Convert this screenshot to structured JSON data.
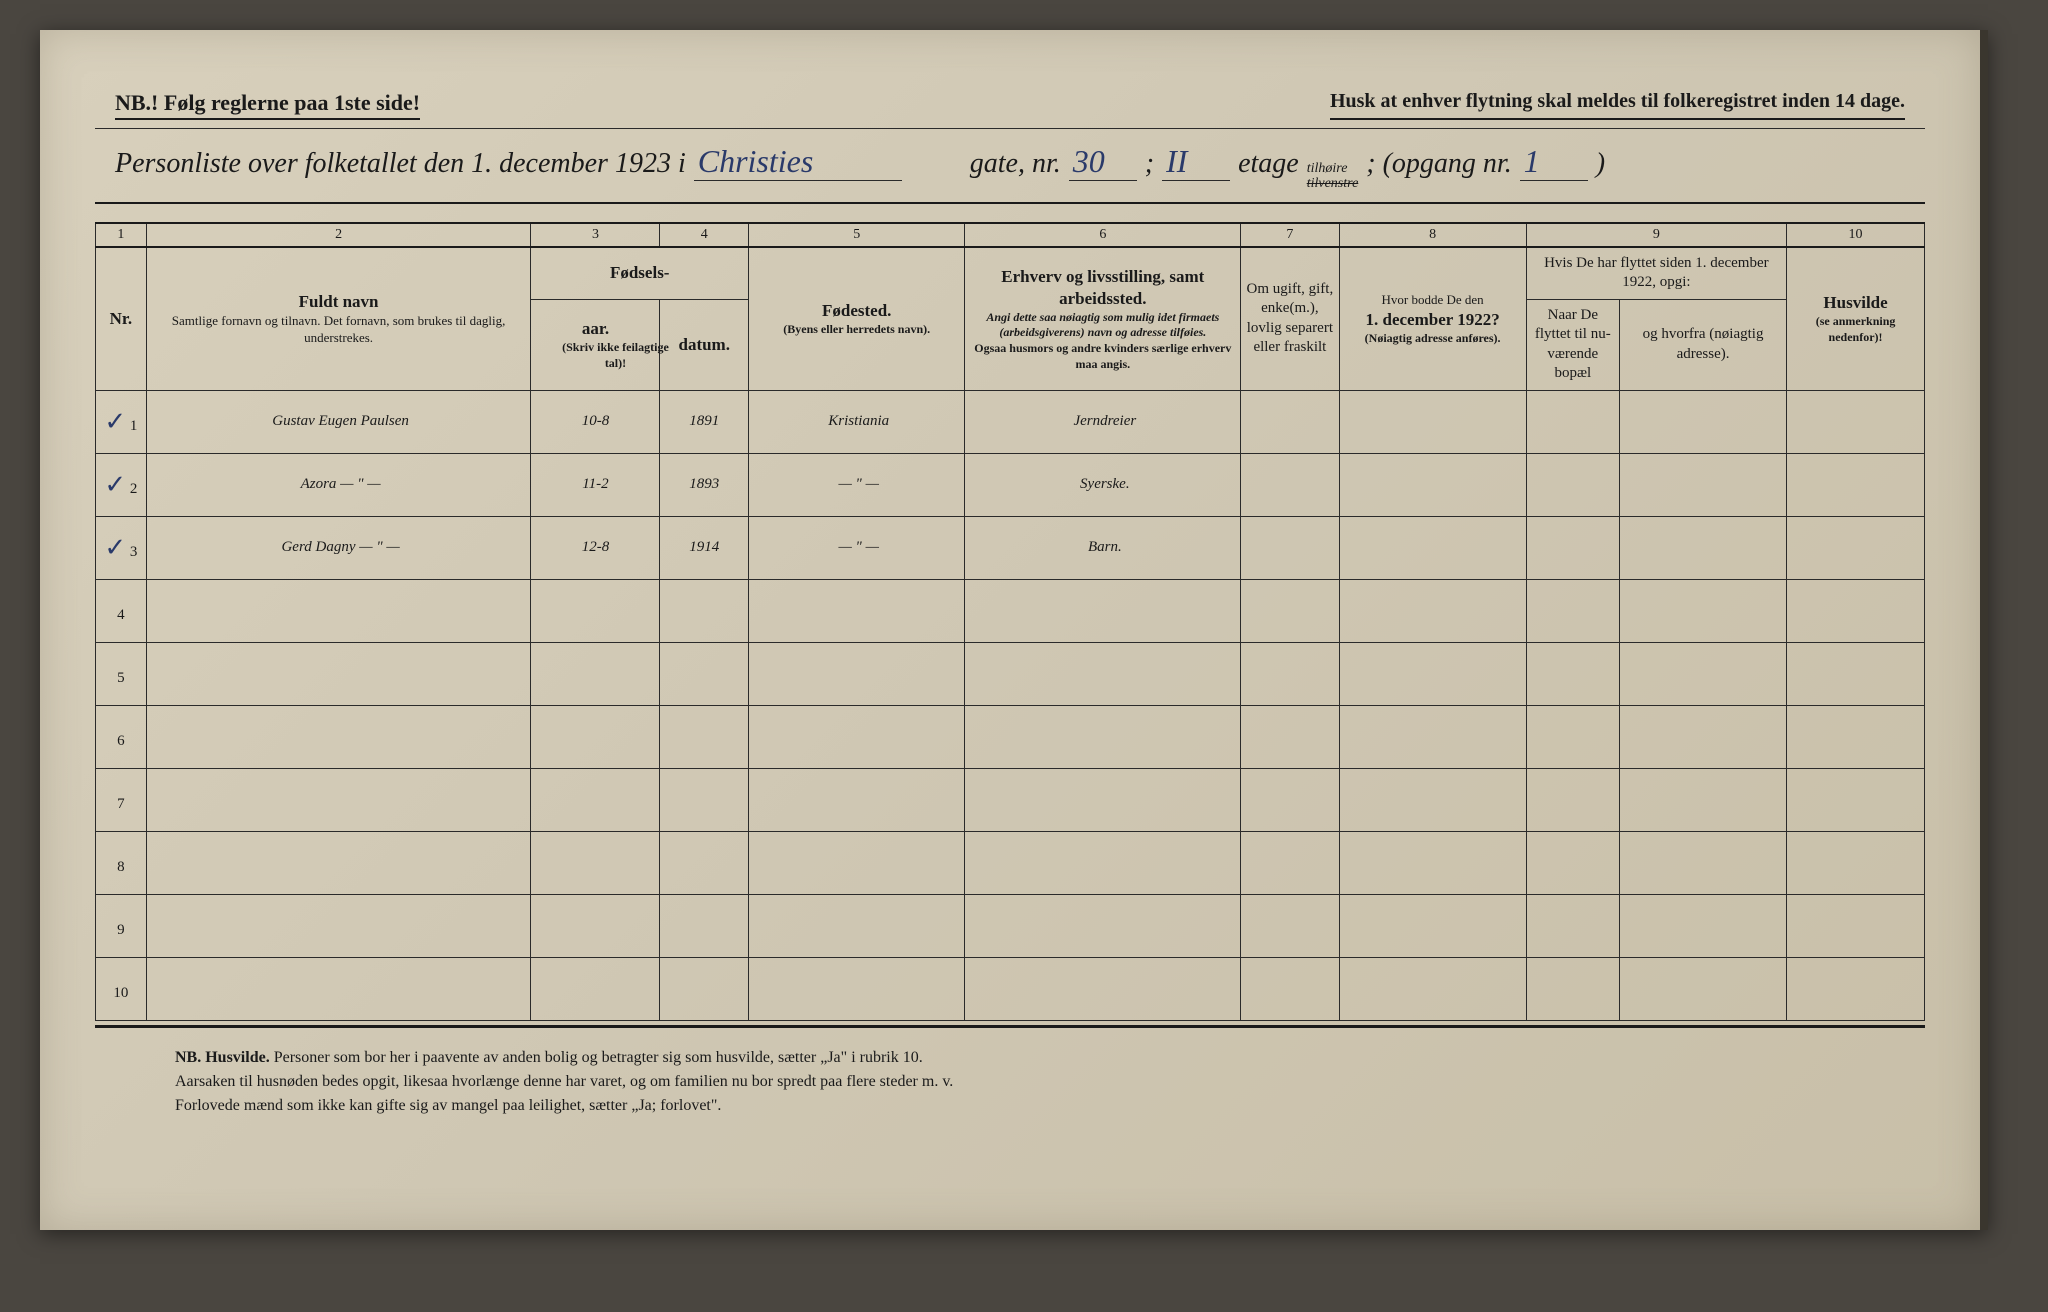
{
  "header": {
    "nb": "NB.! Følg reglerne paa 1ste side!",
    "husk": "Husk at enhver flytning skal meldes til folkeregistret inden 14 dage.",
    "title_prefix": "Personliste over folketallet den 1. december 1923 i",
    "street": "Christies",
    "gate_label": "gate, nr.",
    "gate_nr": "30",
    "semicolon": ";",
    "etage_nr": "II",
    "etage_label": "etage",
    "tilhoire": "tilhøire",
    "tilvenstre": "tilvenstre",
    "opgang_label": "; (opgang nr.",
    "opgang_nr": "1",
    "close_paren": ")"
  },
  "columns": {
    "nums": [
      "1",
      "2",
      "3",
      "4",
      "5",
      "6",
      "7",
      "8",
      "9",
      "10"
    ],
    "nr": "Nr.",
    "fuldt_navn": "Fuldt navn",
    "fuldt_navn_sub": "Samtlige fornavn og tilnavn. Det fornavn, som brukes til daglig, understrekes.",
    "fodsels": "Fødsels-",
    "aar": "aar.",
    "datum": "datum.",
    "fodsels_note": "(Skriv ikke feilagtige tal)!",
    "fodested": "Fødested.",
    "fodested_sub": "(Byens eller herredets navn).",
    "erhverv": "Erhverv og livsstilling, samt arbeidssted.",
    "erhverv_sub": "Angi dette saa nøiagtig som mulig idet firmaets (arbeidsgiverens) navn og adresse tilføies.",
    "erhverv_sub2": "Ogsaa husmors og andre kvinders særlige erhverv maa angis.",
    "ugift": "Om ugift, gift, enke(m.), lovlig separert eller fraskilt",
    "hvor_bodde": "Hvor bodde De den",
    "hvor_bodde_date": "1. december 1922?",
    "hvor_bodde_sub": "(Nøiagtig adresse anføres).",
    "hvis_flyttet": "Hvis De har flyttet siden 1. december 1922, opgi:",
    "naar": "Naar De flyttet til nu-værende bopæl",
    "hvorfra": "og hvorfra (nøiagtig adresse).",
    "husvilde": "Husvilde",
    "husvilde_sub": "(se anmerkning nedenfor)!"
  },
  "rows": [
    {
      "chk": "✓",
      "name": "Gustav Eugen Paulsen",
      "aar": "10-8",
      "datum": "1891",
      "sted": "Kristiania",
      "erhverv": "Jerndreier",
      "c7": "",
      "c8": "",
      "c9a": "",
      "c9b": "",
      "c10": ""
    },
    {
      "chk": "✓",
      "name": "Azora          — \" —",
      "aar": "11-2",
      "datum": "1893",
      "sted": "— \" —",
      "erhverv": "Syerske.",
      "c7": "",
      "c8": "",
      "c9a": "",
      "c9b": "",
      "c10": ""
    },
    {
      "chk": "✓",
      "name": "Gerd Dagny   — \" —",
      "aar": "12-8",
      "datum": "1914",
      "sted": "— \" —",
      "erhverv": "Barn.",
      "c7": "",
      "c8": "",
      "c9a": "",
      "c9b": "",
      "c10": ""
    },
    {
      "chk": "",
      "name": "",
      "aar": "",
      "datum": "",
      "sted": "",
      "erhverv": "",
      "c7": "",
      "c8": "",
      "c9a": "",
      "c9b": "",
      "c10": ""
    },
    {
      "chk": "",
      "name": "",
      "aar": "",
      "datum": "",
      "sted": "",
      "erhverv": "",
      "c7": "",
      "c8": "",
      "c9a": "",
      "c9b": "",
      "c10": ""
    },
    {
      "chk": "",
      "name": "",
      "aar": "",
      "datum": "",
      "sted": "",
      "erhverv": "",
      "c7": "",
      "c8": "",
      "c9a": "",
      "c9b": "",
      "c10": ""
    },
    {
      "chk": "",
      "name": "",
      "aar": "",
      "datum": "",
      "sted": "",
      "erhverv": "",
      "c7": "",
      "c8": "",
      "c9a": "",
      "c9b": "",
      "c10": ""
    },
    {
      "chk": "",
      "name": "",
      "aar": "",
      "datum": "",
      "sted": "",
      "erhverv": "",
      "c7": "",
      "c8": "",
      "c9a": "",
      "c9b": "",
      "c10": ""
    },
    {
      "chk": "",
      "name": "",
      "aar": "",
      "datum": "",
      "sted": "",
      "erhverv": "",
      "c7": "",
      "c8": "",
      "c9a": "",
      "c9b": "",
      "c10": ""
    },
    {
      "chk": "",
      "name": "",
      "aar": "",
      "datum": "",
      "sted": "",
      "erhverv": "",
      "c7": "",
      "c8": "",
      "c9a": "",
      "c9b": "",
      "c10": ""
    }
  ],
  "row_labels": [
    "1",
    "2",
    "3",
    "4",
    "5",
    "6",
    "7",
    "8",
    "9",
    "10"
  ],
  "footnote": {
    "nb": "NB.  Husvilde.",
    "line1": "Personer som bor her i paavente av anden bolig og betragter sig som husvilde, sætter „Ja\" i rubrik 10.",
    "line2": "Aarsaken til husnøden bedes opgit, likesaa hvorlænge denne har varet, og om familien nu bor spredt paa flere steder m. v.",
    "line3": "Forlovede mænd som ikke kan gifte sig av mangel paa leilighet, sætter „Ja; forlovet\"."
  }
}
